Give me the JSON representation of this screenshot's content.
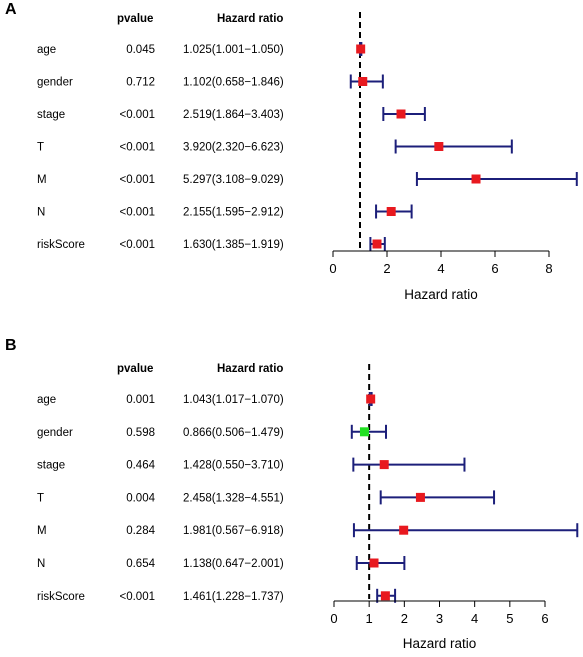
{
  "chart_data": [
    {
      "type": "forest",
      "panel_label": "A",
      "headers": {
        "pvalue": "pvalue",
        "hazard_ratio": "Hazard ratio"
      },
      "xlabel": "Hazard ratio",
      "xlim": [
        0,
        9
      ],
      "xticks": [
        "0",
        "2",
        "4",
        "6",
        "8"
      ],
      "reference_line": 1,
      "rows": [
        {
          "variable": "age",
          "pvalue": "0.045",
          "hr_text": "1.025(1.001−1.050)",
          "hr": 1.025,
          "lower": 1.001,
          "upper": 1.05,
          "color": "#e8191f"
        },
        {
          "variable": "gender",
          "pvalue": "0.712",
          "hr_text": "1.102(0.658−1.846)",
          "hr": 1.102,
          "lower": 0.658,
          "upper": 1.846,
          "color": "#e8191f"
        },
        {
          "variable": "stage",
          "pvalue": "<0.001",
          "hr_text": "2.519(1.864−3.403)",
          "hr": 2.519,
          "lower": 1.864,
          "upper": 3.403,
          "color": "#e8191f"
        },
        {
          "variable": "T",
          "pvalue": "<0.001",
          "hr_text": "3.920(2.320−6.623)",
          "hr": 3.92,
          "lower": 2.32,
          "upper": 6.623,
          "color": "#e8191f"
        },
        {
          "variable": "M",
          "pvalue": "<0.001",
          "hr_text": "5.297(3.108−9.029)",
          "hr": 5.297,
          "lower": 3.108,
          "upper": 9.029,
          "color": "#e8191f"
        },
        {
          "variable": "N",
          "pvalue": "<0.001",
          "hr_text": "2.155(1.595−2.912)",
          "hr": 2.155,
          "lower": 1.595,
          "upper": 2.912,
          "color": "#e8191f"
        },
        {
          "variable": "riskScore",
          "pvalue": "<0.001",
          "hr_text": "1.630(1.385−1.919)",
          "hr": 1.63,
          "lower": 1.385,
          "upper": 1.919,
          "color": "#e8191f"
        }
      ]
    },
    {
      "type": "forest",
      "panel_label": "B",
      "headers": {
        "pvalue": "pvalue",
        "hazard_ratio": "Hazard ratio"
      },
      "xlabel": "Hazard ratio",
      "xlim": [
        0,
        6
      ],
      "xticks": [
        "0",
        "1",
        "2",
        "3",
        "4",
        "5",
        "6"
      ],
      "reference_line": 1,
      "rows": [
        {
          "variable": "age",
          "pvalue": "0.001",
          "hr_text": "1.043(1.017−1.070)",
          "hr": 1.043,
          "lower": 1.017,
          "upper": 1.07,
          "color": "#e8191f"
        },
        {
          "variable": "gender",
          "pvalue": "0.598",
          "hr_text": "0.866(0.506−1.479)",
          "hr": 0.866,
          "lower": 0.506,
          "upper": 1.479,
          "color": "#22e022"
        },
        {
          "variable": "stage",
          "pvalue": "0.464",
          "hr_text": "1.428(0.550−3.710)",
          "hr": 1.428,
          "lower": 0.55,
          "upper": 3.71,
          "color": "#e8191f"
        },
        {
          "variable": "T",
          "pvalue": "0.004",
          "hr_text": "2.458(1.328−4.551)",
          "hr": 2.458,
          "lower": 1.328,
          "upper": 4.551,
          "color": "#e8191f"
        },
        {
          "variable": "M",
          "pvalue": "0.284",
          "hr_text": "1.981(0.567−6.918)",
          "hr": 1.981,
          "lower": 0.567,
          "upper": 6.918,
          "color": "#e8191f"
        },
        {
          "variable": "N",
          "pvalue": "0.654",
          "hr_text": "1.138(0.647−2.001)",
          "hr": 1.138,
          "lower": 0.647,
          "upper": 2.001,
          "color": "#e8191f"
        },
        {
          "variable": "riskScore",
          "pvalue": "<0.001",
          "hr_text": "1.461(1.228−1.737)",
          "hr": 1.461,
          "lower": 1.228,
          "upper": 1.737,
          "color": "#e8191f"
        }
      ]
    }
  ],
  "colors": {
    "whisker": "#1c1f7a",
    "axis": "#000000"
  }
}
